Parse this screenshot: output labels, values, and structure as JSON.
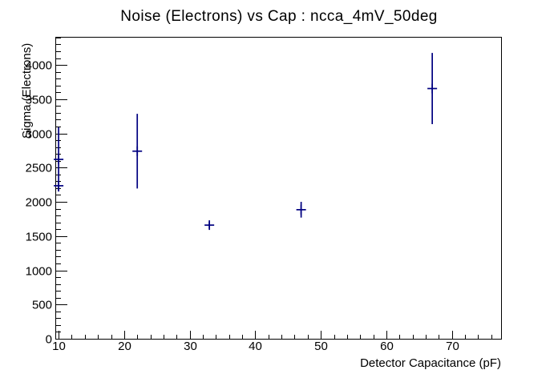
{
  "chart_data": {
    "type": "scatter",
    "title": "Noise (Electrons) vs Cap : ncca_4mV_50deg",
    "xlabel": "Detector Capacitance (pF)",
    "ylabel": "Sigma (Electrons)",
    "xlim": [
      9.5,
      77.5
    ],
    "ylim": [
      0,
      4410
    ],
    "xticks": [
      10,
      20,
      30,
      40,
      50,
      60,
      70
    ],
    "yticks": [
      0,
      500,
      1000,
      1500,
      2000,
      2500,
      3000,
      3500,
      4000
    ],
    "x_minor_step": 2,
    "y_minor_step": 100,
    "grid": false,
    "legend": false,
    "marker_style": "plus",
    "axis_color": "#000000",
    "background": "#ffffff",
    "series": [
      {
        "name": "noise-vs-capacitance",
        "color": "#000080",
        "points": [
          {
            "x": 10,
            "y": 2620,
            "ey": 470
          },
          {
            "x": 10,
            "y": 2235,
            "ey": 60
          },
          {
            "x": 22,
            "y": 2740,
            "ey": 545
          },
          {
            "x": 33,
            "y": 1660,
            "ey": 50
          },
          {
            "x": 47,
            "y": 1885,
            "ey": 115
          },
          {
            "x": 67,
            "y": 3655,
            "ey": 520
          }
        ]
      }
    ]
  }
}
